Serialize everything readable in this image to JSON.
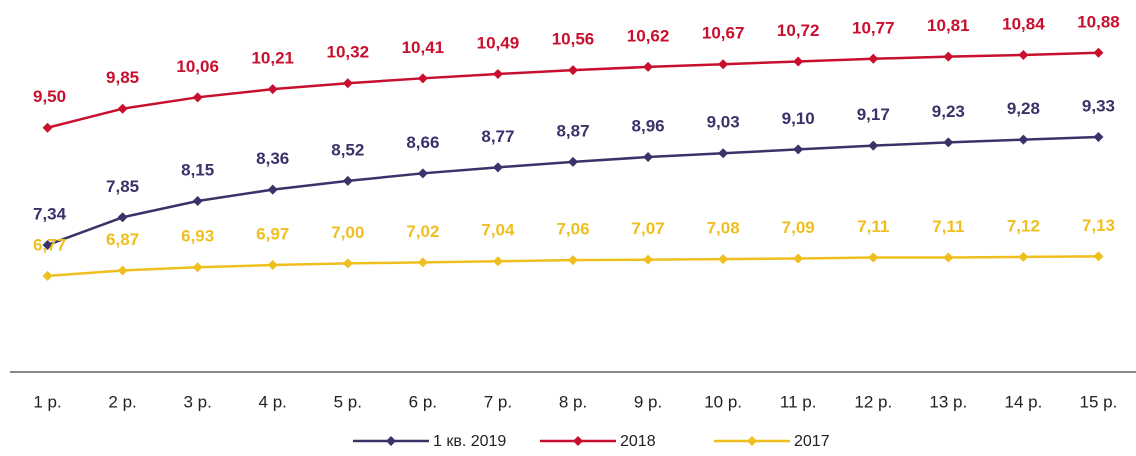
{
  "chart_data": {
    "type": "line",
    "categories": [
      "1 р.",
      "2 р.",
      "3 р.",
      "4 р.",
      "5 р.",
      "6 р.",
      "7 р.",
      "8 р.",
      "9 р.",
      "10 р.",
      "11 р.",
      "12 р.",
      "13 р.",
      "14 р.",
      "15 р."
    ],
    "ylim": [
      5,
      12
    ],
    "series": [
      {
        "name": "1 кв. 2019",
        "color": "#3b3269",
        "values": [
          7.34,
          7.85,
          8.15,
          8.36,
          8.52,
          8.66,
          8.77,
          8.87,
          8.96,
          9.03,
          9.1,
          9.17,
          9.23,
          9.28,
          9.33
        ],
        "value_labels": [
          "7,34",
          "7,85",
          "8,15",
          "8,36",
          "8,52",
          "8,66",
          "8,77",
          "8,87",
          "8,96",
          "9,03",
          "9,10",
          "9,17",
          "9,23",
          "9,28",
          "9,33"
        ]
      },
      {
        "name": "2018",
        "color": "#c8102e",
        "values": [
          9.5,
          9.85,
          10.06,
          10.21,
          10.32,
          10.41,
          10.49,
          10.56,
          10.62,
          10.67,
          10.72,
          10.77,
          10.81,
          10.84,
          10.88
        ],
        "value_labels": [
          "9,50",
          "9,85",
          "10,06",
          "10,21",
          "10,32",
          "10,41",
          "10,49",
          "10,56",
          "10,62",
          "10,67",
          "10,72",
          "10,77",
          "10,81",
          "10,84",
          "10,88"
        ]
      },
      {
        "name": "2017",
        "color": "#efbf1f",
        "values": [
          6.77,
          6.87,
          6.93,
          6.97,
          7.0,
          7.02,
          7.04,
          7.06,
          7.07,
          7.08,
          7.09,
          7.11,
          7.11,
          7.12,
          7.13
        ],
        "value_labels": [
          "6,77",
          "6,87",
          "6,93",
          "6,97",
          "7,00",
          "7,02",
          "7,04",
          "7,06",
          "7,07",
          "7,08",
          "7,09",
          "7,11",
          "7,11",
          "7,12",
          "7,13"
        ]
      }
    ]
  }
}
